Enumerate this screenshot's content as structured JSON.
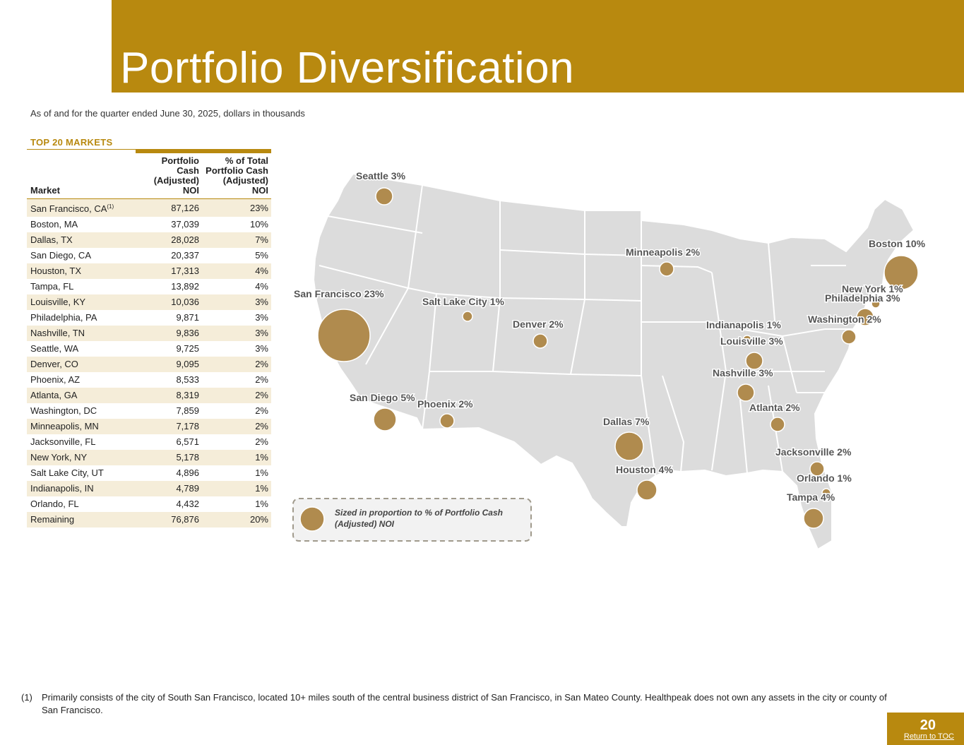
{
  "header": {
    "title": "Portfolio Diversification"
  },
  "subtitle": "As of and for the quarter ended June 30, 2025, dollars in thousands",
  "section_label": "TOP 20 MARKETS",
  "table": {
    "headers": {
      "market": "Market",
      "noi": "Portfolio Cash (Adjusted) NOI",
      "pct": "% of Total Portfolio Cash (Adjusted) NOI"
    },
    "rows": [
      {
        "market": "San Francisco, CA",
        "note": "(1)",
        "noi": "87,126",
        "pct": "23%"
      },
      {
        "market": "Boston, MA",
        "noi": "37,039",
        "pct": "10%"
      },
      {
        "market": "Dallas, TX",
        "noi": "28,028",
        "pct": "7%"
      },
      {
        "market": "San Diego, CA",
        "noi": "20,337",
        "pct": "5%"
      },
      {
        "market": "Houston, TX",
        "noi": "17,313",
        "pct": "4%"
      },
      {
        "market": "Tampa, FL",
        "noi": "13,892",
        "pct": "4%"
      },
      {
        "market": "Louisville, KY",
        "noi": "10,036",
        "pct": "3%"
      },
      {
        "market": "Philadelphia, PA",
        "noi": "9,871",
        "pct": "3%"
      },
      {
        "market": "Nashville, TN",
        "noi": "9,836",
        "pct": "3%"
      },
      {
        "market": "Seattle, WA",
        "noi": "9,725",
        "pct": "3%"
      },
      {
        "market": "Denver, CO",
        "noi": "9,095",
        "pct": "2%"
      },
      {
        "market": "Phoenix, AZ",
        "noi": "8,533",
        "pct": "2%"
      },
      {
        "market": "Atlanta, GA",
        "noi": "8,319",
        "pct": "2%"
      },
      {
        "market": "Washington, DC",
        "noi": "7,859",
        "pct": "2%"
      },
      {
        "market": "Minneapolis, MN",
        "noi": "7,178",
        "pct": "2%"
      },
      {
        "market": "Jacksonville, FL",
        "noi": "6,571",
        "pct": "2%"
      },
      {
        "market": "New York, NY",
        "noi": "5,178",
        "pct": "1%"
      },
      {
        "market": "Salt Lake City, UT",
        "noi": "4,896",
        "pct": "1%"
      },
      {
        "market": "Indianapolis, IN",
        "noi": "4,789",
        "pct": "1%"
      },
      {
        "market": "Orlando, FL",
        "noi": "4,432",
        "pct": "1%"
      },
      {
        "market": "Remaining",
        "noi": "76,876",
        "pct": "20%"
      }
    ]
  },
  "map": {
    "labels": [
      {
        "id": "seattle",
        "text": "Seattle 3%"
      },
      {
        "id": "sf",
        "text": "San Francisco 23%"
      },
      {
        "id": "slc",
        "text": "Salt Lake City 1%"
      },
      {
        "id": "denver",
        "text": "Denver 2%"
      },
      {
        "id": "minneapolis",
        "text": "Minneapolis 2%"
      },
      {
        "id": "boston",
        "text": "Boston 10%"
      },
      {
        "id": "newyork",
        "text": "New York 1%"
      },
      {
        "id": "philadelphia",
        "text": "Philadelphia 3%"
      },
      {
        "id": "washington",
        "text": "Washington 2%"
      },
      {
        "id": "indianapolis",
        "text": "Indianapolis 1%"
      },
      {
        "id": "louisville",
        "text": "Louisville 3%"
      },
      {
        "id": "nashville",
        "text": "Nashville 3%"
      },
      {
        "id": "atlanta",
        "text": "Atlanta 2%"
      },
      {
        "id": "sandiego",
        "text": "San Diego 5%"
      },
      {
        "id": "phoenix",
        "text": "Phoenix 2%"
      },
      {
        "id": "dallas",
        "text": "Dallas 7%"
      },
      {
        "id": "houston",
        "text": "Houston 4%"
      },
      {
        "id": "jacksonville",
        "text": "Jacksonville 2%"
      },
      {
        "id": "orlando",
        "text": "Orlando 1%"
      },
      {
        "id": "tampa",
        "text": "Tampa 4%"
      }
    ],
    "legend_line1": "Sized in proportion to % of Portfolio Cash",
    "legend_line2": "(Adjusted) NOI",
    "bubble_color": "#b08b4e",
    "land_color": "#dcdcdc"
  },
  "footnote": {
    "marker": "(1)",
    "text": "Primarily consists of the city of South San Francisco, located 10+ miles south of the central business district of San Francisco, in San Mateo County. Healthpeak does not own any assets in the city or county of San Francisco."
  },
  "footer": {
    "page_number": "20",
    "toc_link": "Return to TOC"
  },
  "colors": {
    "brand_gold": "#b8890f",
    "row_shade": "#f5edd9"
  }
}
